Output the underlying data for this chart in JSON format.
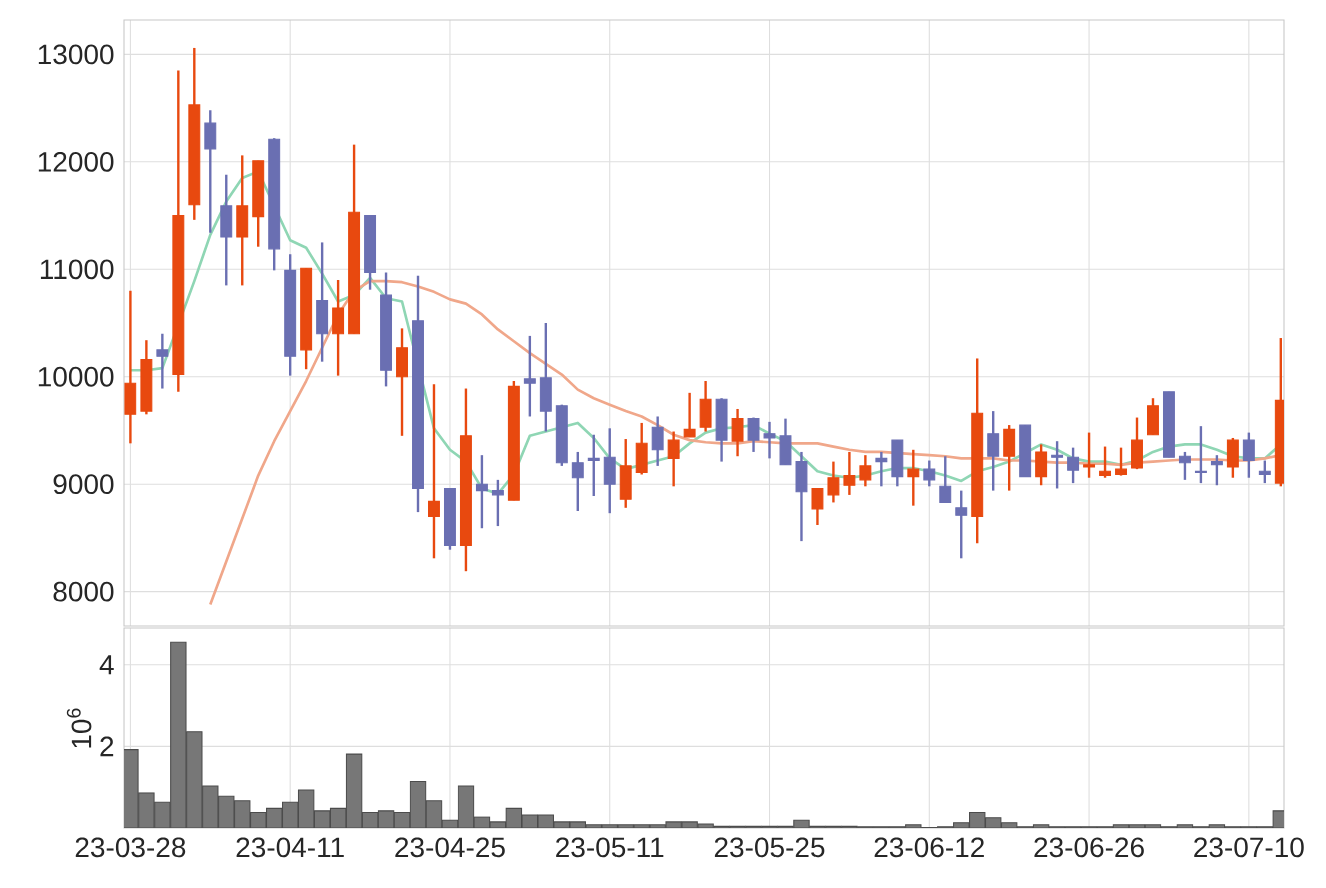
{
  "chart_data": [
    {
      "type": "candlestick",
      "tick_labels": "y",
      "grid": true,
      "categories": [
        null,
        null,
        null,
        null,
        null,
        null,
        null,
        null,
        null,
        null,
        null,
        null,
        null,
        null,
        null,
        null,
        null,
        null,
        null,
        null,
        null,
        null,
        null,
        null,
        null,
        null,
        null,
        null,
        null,
        null,
        null,
        null,
        null,
        null,
        null,
        null,
        null,
        null,
        null,
        null,
        null,
        null,
        null,
        null,
        null,
        null,
        null,
        null,
        null,
        null,
        null,
        null,
        null,
        null,
        null,
        null,
        null,
        null,
        null,
        null,
        null,
        null,
        null,
        null,
        null,
        null,
        null,
        null,
        null,
        null,
        null,
        null,
        null
      ],
      "ylim": [
        7680,
        13320
      ],
      "yticks": [
        8000,
        9000,
        10000,
        11000,
        12000,
        13000
      ],
      "ohlc": [
        [
          9650,
          10800,
          9380,
          9940
        ],
        [
          9680,
          10340,
          9650,
          10160
        ],
        [
          10250,
          10400,
          9890,
          10190
        ],
        [
          10020,
          12850,
          9860,
          11500
        ],
        [
          11600,
          13060,
          11460,
          12530
        ],
        [
          12360,
          12480,
          11340,
          12120
        ],
        [
          11590,
          11880,
          10850,
          11300
        ],
        [
          11300,
          12060,
          10850,
          11590
        ],
        [
          11490,
          12010,
          11210,
          12010
        ],
        [
          12210,
          12220,
          10990,
          11190
        ],
        [
          10990,
          11140,
          10010,
          10190
        ],
        [
          10250,
          11010,
          10070,
          11010
        ],
        [
          10710,
          11250,
          10140,
          10400
        ],
        [
          10400,
          10900,
          10010,
          10640
        ],
        [
          10400,
          12160,
          10400,
          11530
        ],
        [
          11500,
          11500,
          10810,
          10970
        ],
        [
          10760,
          10970,
          9910,
          10060
        ],
        [
          10000,
          10450,
          9450,
          10270
        ],
        [
          10520,
          10940,
          8740,
          8960
        ],
        [
          8700,
          9930,
          8310,
          8840
        ],
        [
          8960,
          8960,
          8390,
          8430
        ],
        [
          8430,
          9890,
          8190,
          9450
        ],
        [
          9000,
          9270,
          8590,
          8940
        ],
        [
          8940,
          9040,
          8610,
          8900
        ],
        [
          8850,
          9960,
          8850,
          9910
        ],
        [
          9980,
          10380,
          9630,
          9940
        ],
        [
          9990,
          10500,
          9490,
          9680
        ],
        [
          9730,
          9740,
          9170,
          9200
        ],
        [
          9200,
          9300,
          8750,
          9060
        ],
        [
          9240,
          9460,
          8890,
          9220
        ],
        [
          9250,
          9520,
          8730,
          9000
        ],
        [
          8860,
          9420,
          8780,
          9170
        ],
        [
          9110,
          9570,
          9090,
          9380
        ],
        [
          9530,
          9630,
          9170,
          9320
        ],
        [
          9240,
          9490,
          8980,
          9410
        ],
        [
          9440,
          9850,
          9440,
          9510
        ],
        [
          9530,
          9960,
          9490,
          9790
        ],
        [
          9790,
          9800,
          9210,
          9410
        ],
        [
          9400,
          9700,
          9260,
          9610
        ],
        [
          9610,
          9620,
          9300,
          9410
        ],
        [
          9470,
          9580,
          9240,
          9430
        ],
        [
          9450,
          9610,
          9180,
          9180
        ],
        [
          9210,
          9300,
          8470,
          8930
        ],
        [
          8770,
          8960,
          8620,
          8960
        ],
        [
          8900,
          9210,
          8830,
          9060
        ],
        [
          8990,
          9300,
          8900,
          9080
        ],
        [
          9040,
          9270,
          8980,
          9170
        ],
        [
          9240,
          9300,
          8980,
          9210
        ],
        [
          9410,
          9410,
          8980,
          9070
        ],
        [
          9070,
          9320,
          8800,
          9140
        ],
        [
          9140,
          9220,
          8980,
          9040
        ],
        [
          8980,
          9260,
          8830,
          8830
        ],
        [
          8780,
          8940,
          8310,
          8710
        ],
        [
          8700,
          10170,
          8450,
          9660
        ],
        [
          9470,
          9680,
          8940,
          9260
        ],
        [
          9260,
          9550,
          8940,
          9510
        ],
        [
          9550,
          9550,
          9070,
          9070
        ],
        [
          9070,
          9370,
          8990,
          9300
        ],
        [
          9270,
          9400,
          8960,
          9250
        ],
        [
          9250,
          9340,
          9010,
          9130
        ],
        [
          9160,
          9480,
          9060,
          9180
        ],
        [
          9080,
          9350,
          9060,
          9120
        ],
        [
          9090,
          9340,
          9080,
          9140
        ],
        [
          9150,
          9620,
          9140,
          9410
        ],
        [
          9460,
          9800,
          9460,
          9730
        ],
        [
          9860,
          9860,
          9250,
          9250
        ],
        [
          9260,
          9300,
          9040,
          9200
        ],
        [
          9120,
          9540,
          9010,
          9110
        ],
        [
          9210,
          9270,
          8990,
          9180
        ],
        [
          9160,
          9430,
          9060,
          9410
        ],
        [
          9410,
          9480,
          9060,
          9220
        ],
        [
          9120,
          9220,
          9010,
          9090
        ],
        [
          9010,
          10360,
          8980,
          9780
        ]
      ],
      "colors": [
        "#e8490f",
        "#e8490f",
        "#6a6fb2",
        "#e8490f",
        "#e8490f",
        "#6a6fb2",
        "#6a6fb2",
        "#e8490f",
        "#e8490f",
        "#6a6fb2",
        "#6a6fb2",
        "#e8490f",
        "#6a6fb2",
        "#e8490f",
        "#e8490f",
        "#6a6fb2",
        "#6a6fb2",
        "#e8490f",
        "#6a6fb2",
        "#e8490f",
        "#6a6fb2",
        "#e8490f",
        "#6a6fb2",
        "#6a6fb2",
        "#e8490f",
        "#6a6fb2",
        "#6a6fb2",
        "#6a6fb2",
        "#6a6fb2",
        "#6a6fb2",
        "#6a6fb2",
        "#e8490f",
        "#e8490f",
        "#6a6fb2",
        "#e8490f",
        "#e8490f",
        "#e8490f",
        "#6a6fb2",
        "#e8490f",
        "#6a6fb2",
        "#6a6fb2",
        "#6a6fb2",
        "#6a6fb2",
        "#e8490f",
        "#e8490f",
        "#e8490f",
        "#e8490f",
        "#6a6fb2",
        "#6a6fb2",
        "#e8490f",
        "#6a6fb2",
        "#6a6fb2",
        "#6a6fb2",
        "#e8490f",
        "#6a6fb2",
        "#e8490f",
        "#6a6fb2",
        "#e8490f",
        "#6a6fb2",
        "#6a6fb2",
        "#e8490f",
        "#e8490f",
        "#e8490f",
        "#e8490f",
        "#e8490f",
        "#6a6fb2",
        "#6a6fb2",
        "#6a6fb2",
        "#6a6fb2",
        "#e8490f",
        "#6a6fb2",
        "#6a6fb2",
        "#e8490f"
      ],
      "series": [
        {
          "type": "line",
          "color": "#8fd6b4",
          "values": [
            10060,
            10060,
            10080,
            null,
            10890,
            11320,
            11630,
            11850,
            11910,
            null,
            11270,
            11200,
            10960,
            10700,
            10760,
            10920,
            10730,
            10700,
            null,
            9520,
            9320,
            9210,
            8960,
            8910,
            9090,
            9450,
            9490,
            9530,
            9570,
            9430,
            9240,
            9140,
            9180,
            9220,
            9260,
            9380,
            9480,
            9520,
            9530,
            9550,
            9470,
            9400,
            9260,
            9120,
            9080,
            9060,
            9080,
            9120,
            9150,
            9150,
            9120,
            9080,
            9030,
            9120,
            9160,
            9210,
            9290,
            9370,
            9320,
            9240,
            9210,
            9210,
            9180,
            9220,
            9300,
            9350,
            9370,
            9370,
            9320,
            9260,
            9240,
            9240,
            9370
          ]
        },
        {
          "type": "line",
          "color": "#f0a78a",
          "values": [
            null,
            null,
            null,
            null,
            null,
            7880,
            8280,
            8680,
            9080,
            9400,
            9680,
            9960,
            10270,
            10580,
            10800,
            10890,
            10890,
            10880,
            10840,
            10790,
            10720,
            10680,
            10580,
            10440,
            10330,
            10220,
            10120,
            10020,
            9880,
            9800,
            9740,
            9680,
            9630,
            9550,
            9460,
            9410,
            9390,
            9380,
            9380,
            9400,
            9390,
            9380,
            9380,
            9380,
            9350,
            9320,
            9300,
            9300,
            9290,
            9280,
            9270,
            9260,
            9240,
            9240,
            9240,
            9220,
            9220,
            9210,
            9200,
            9200,
            9190,
            9190,
            9180,
            9200,
            9210,
            9220,
            9230,
            9230,
            9230,
            9220,
            9220,
            9240,
            9270
          ]
        }
      ]
    },
    {
      "type": "bar",
      "grid": true,
      "ylabel": "10$^{6}$",
      "color": "#777777",
      "categories": [
        "23-03-28",
        null,
        null,
        null,
        null,
        null,
        null,
        null,
        null,
        null,
        "23-04-11",
        null,
        null,
        null,
        null,
        null,
        null,
        null,
        null,
        null,
        "23-04-25",
        null,
        null,
        null,
        null,
        null,
        null,
        null,
        null,
        null,
        "23-05-11",
        null,
        null,
        null,
        null,
        null,
        null,
        null,
        null,
        null,
        "23-05-25",
        null,
        null,
        null,
        null,
        null,
        null,
        null,
        null,
        null,
        "23-06-12",
        null,
        null,
        null,
        null,
        null,
        null,
        null,
        null,
        null,
        "23-06-26",
        null,
        null,
        null,
        null,
        null,
        null,
        null,
        null,
        null,
        "23-07-10",
        null,
        null
      ],
      "ylim": [
        0,
        4.9
      ],
      "yticks": [
        2,
        4
      ],
      "values": [
        1.92,
        0.86,
        0.63,
        4.55,
        2.36,
        1.03,
        0.78,
        0.67,
        0.38,
        0.48,
        0.63,
        0.93,
        0.42,
        0.48,
        1.81,
        0.38,
        0.42,
        0.38,
        1.14,
        0.67,
        0.19,
        1.03,
        0.27,
        0.15,
        0.48,
        0.32,
        0.32,
        0.15,
        0.15,
        0.08,
        0.08,
        0.08,
        0.08,
        0.08,
        0.15,
        0.15,
        0.1,
        0.04,
        0.04,
        0.04,
        0.04,
        0.04,
        0.19,
        0.04,
        0.04,
        0.04,
        0.03,
        0.03,
        0.03,
        0.08,
        0.01,
        0.03,
        0.13,
        0.38,
        0.25,
        0.13,
        0.03,
        0.08,
        0.03,
        0.03,
        0.03,
        0.03,
        0.08,
        0.08,
        0.08,
        0.03,
        0.08,
        0.03,
        0.08,
        0.03,
        0.03,
        0.03,
        0.42
      ]
    }
  ]
}
